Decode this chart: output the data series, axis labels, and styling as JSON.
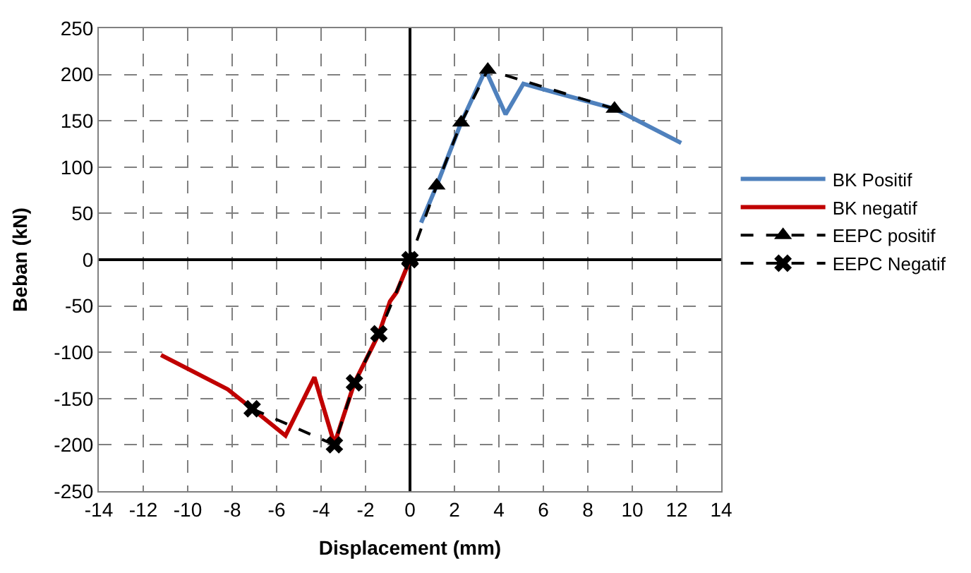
{
  "chart_data": {
    "type": "line",
    "xlabel": "Displacement (mm)",
    "ylabel": "Beban (kN)",
    "xlim": [
      -14,
      14
    ],
    "xticks": [
      -14,
      -12,
      -10,
      -8,
      -6,
      -4,
      -2,
      0,
      2,
      4,
      6,
      8,
      10,
      12,
      14
    ],
    "ylim": [
      -250,
      250
    ],
    "yticks": [
      -250,
      -200,
      -150,
      -100,
      -50,
      0,
      50,
      100,
      150,
      200,
      250
    ],
    "grid": true,
    "legend": "right",
    "series": [
      {
        "name": "BK Positif",
        "color": "#4f81bd",
        "line_style": "solid",
        "marker": "none",
        "x": [
          0.5,
          1.2,
          2.3,
          3.4,
          4.3,
          5.1,
          9.2,
          12.2
        ],
        "values": [
          40,
          80,
          148,
          205,
          157,
          190,
          163,
          126
        ]
      },
      {
        "name": "BK negatif",
        "color": "#c00000",
        "line_style": "solid",
        "marker": "none",
        "x": [
          -11.2,
          -8.2,
          -7.1,
          -5.6,
          -4.3,
          -3.4,
          -2.5,
          -1.4,
          -0.9,
          -0.6,
          0
        ],
        "values": [
          -103,
          -140,
          -161,
          -190,
          -127,
          -199,
          -133,
          -80,
          -45,
          -35,
          0
        ]
      },
      {
        "name": "EEPC positif",
        "color": "#000000",
        "line_style": "dashed",
        "marker": "triangle",
        "x": [
          9.2,
          3.5,
          2.3,
          1.2,
          0
        ],
        "values": [
          163,
          205,
          148,
          80,
          0
        ]
      },
      {
        "name": "EEPC Negatif",
        "color": "#000000",
        "line_style": "dashed",
        "marker": "cross",
        "x": [
          -7.1,
          -3.4,
          -2.5,
          -1.4,
          0
        ],
        "values": [
          -161,
          -200,
          -133,
          -80,
          0
        ]
      }
    ]
  }
}
